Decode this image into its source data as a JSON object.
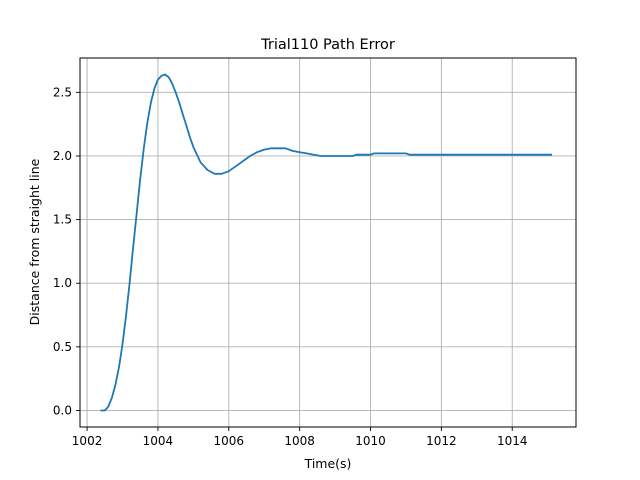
{
  "chart_data": {
    "type": "line",
    "title": "Trial110 Path Error",
    "xlabel": "Time(s)",
    "ylabel": "Distance from straight line",
    "xlim": [
      1001.8,
      1015.8
    ],
    "ylim": [
      -0.13,
      2.77
    ],
    "xticks": [
      {
        "value": 1002,
        "label": "1002"
      },
      {
        "value": 1004,
        "label": "1004"
      },
      {
        "value": 1006,
        "label": "1006"
      },
      {
        "value": 1008,
        "label": "1008"
      },
      {
        "value": 1010,
        "label": "1010"
      },
      {
        "value": 1012,
        "label": "1012"
      },
      {
        "value": 1014,
        "label": "1014"
      }
    ],
    "yticks": [
      {
        "value": 0.0,
        "label": "0.0"
      },
      {
        "value": 0.5,
        "label": "0.5"
      },
      {
        "value": 1.0,
        "label": "1.0"
      },
      {
        "value": 1.5,
        "label": "1.5"
      },
      {
        "value": 2.0,
        "label": "2.0"
      },
      {
        "value": 2.5,
        "label": "2.5"
      }
    ],
    "grid": true,
    "series": [
      {
        "color": "#1f77b4",
        "x": [
          1002.4,
          1002.5,
          1002.6,
          1002.7,
          1002.8,
          1002.9,
          1003.0,
          1003.1,
          1003.2,
          1003.3,
          1003.4,
          1003.5,
          1003.6,
          1003.7,
          1003.8,
          1003.9,
          1004.0,
          1004.1,
          1004.2,
          1004.3,
          1004.4,
          1004.5,
          1004.6,
          1004.7,
          1004.8,
          1004.9,
          1005.0,
          1005.2,
          1005.4,
          1005.6,
          1005.8,
          1006.0,
          1006.2,
          1006.4,
          1006.6,
          1006.8,
          1007.0,
          1007.2,
          1007.4,
          1007.6,
          1007.8,
          1008.0,
          1008.2,
          1008.4,
          1008.6,
          1009.0,
          1009.5,
          1009.6,
          1010.0,
          1010.1,
          1010.5,
          1011.0,
          1011.1,
          1012.0,
          1013.0,
          1014.0,
          1015.1
        ],
        "y": [
          0.0,
          0.0,
          0.03,
          0.1,
          0.2,
          0.34,
          0.52,
          0.75,
          1.0,
          1.28,
          1.55,
          1.82,
          2.06,
          2.26,
          2.42,
          2.53,
          2.6,
          2.63,
          2.64,
          2.62,
          2.57,
          2.5,
          2.42,
          2.33,
          2.24,
          2.15,
          2.07,
          1.95,
          1.89,
          1.86,
          1.86,
          1.88,
          1.92,
          1.96,
          2.0,
          2.03,
          2.05,
          2.06,
          2.06,
          2.06,
          2.04,
          2.03,
          2.02,
          2.01,
          2.0,
          2.0,
          2.0,
          2.01,
          2.01,
          2.02,
          2.02,
          2.02,
          2.01,
          2.01,
          2.01,
          2.01,
          2.01
        ]
      }
    ]
  }
}
